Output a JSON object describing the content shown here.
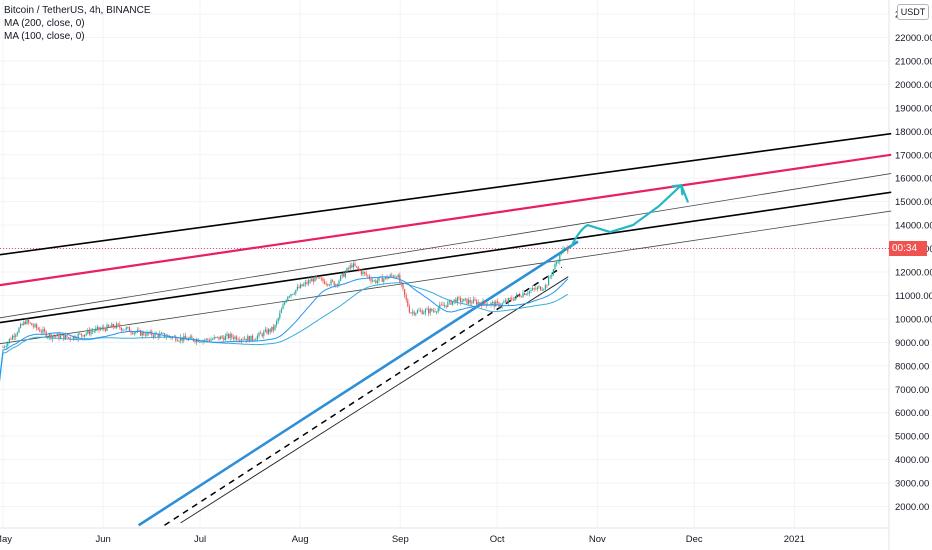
{
  "legend": {
    "symbol": "Bitcoin / TetherUS, 4h, BINANCE",
    "ma1": "MA (200, close, 0)",
    "ma2": "MA (100, close, 0)"
  },
  "currency": "USDT",
  "last_price_label": "00:34",
  "colors": {
    "up": "#26a69a",
    "down": "#ef5350",
    "ma1": "#3aaed8",
    "ma2": "#2196f3",
    "trend_blue": "#2e8fd9",
    "red_line": "#e91e63",
    "projection": "#24b8c4",
    "black": "#000000",
    "grid": "#f0f3fa"
  },
  "chart_data": {
    "type": "candlestick",
    "y_axis": {
      "ticks": [
        "2000.00",
        "3000.00",
        "4000.00",
        "5000.00",
        "6000.00",
        "7000.00",
        "8000.00",
        "9000.00",
        "10000.00",
        "11000.00",
        "12000.00",
        "13000.00",
        "14000.00",
        "15000.00",
        "16000.00",
        "17000.00",
        "18000.00",
        "19000.00",
        "20000.00",
        "21000.00",
        "22000.00",
        "2"
      ]
    },
    "x_axis": {
      "ticks": [
        "May",
        "Jun",
        "Jul",
        "Aug",
        "Sep",
        "Oct",
        "Nov",
        "Dec",
        "2021"
      ]
    },
    "series_points": [
      [
        "2020-05-01",
        8800
      ],
      [
        "2020-05-08",
        9900
      ],
      [
        "2020-05-15",
        9300
      ],
      [
        "2020-05-22",
        9200
      ],
      [
        "2020-05-29",
        9500
      ],
      [
        "2020-06-05",
        9700
      ],
      [
        "2020-06-12",
        9400
      ],
      [
        "2020-06-19",
        9300
      ],
      [
        "2020-06-26",
        9150
      ],
      [
        "2020-07-03",
        9100
      ],
      [
        "2020-07-10",
        9250
      ],
      [
        "2020-07-17",
        9150
      ],
      [
        "2020-07-24",
        9600
      ],
      [
        "2020-07-28",
        11000
      ],
      [
        "2020-08-05",
        11700
      ],
      [
        "2020-08-12",
        11500
      ],
      [
        "2020-08-17",
        12300
      ],
      [
        "2020-08-24",
        11600
      ],
      [
        "2020-08-31",
        11900
      ],
      [
        "2020-09-04",
        10300
      ],
      [
        "2020-09-11",
        10350
      ],
      [
        "2020-09-18",
        10800
      ],
      [
        "2020-09-25",
        10700
      ],
      [
        "2020-10-02",
        10600
      ],
      [
        "2020-10-09",
        11100
      ],
      [
        "2020-10-16",
        11400
      ],
      [
        "2020-10-21",
        12900
      ],
      [
        "2020-10-23",
        13000
      ]
    ],
    "projection": [
      [
        "2020-10-24",
        13100
      ],
      [
        "2020-10-29",
        14000
      ],
      [
        "2020-11-05",
        13700
      ],
      [
        "2020-11-12",
        14000
      ],
      [
        "2020-11-20",
        14800
      ],
      [
        "2020-11-27",
        15700
      ],
      [
        "2020-11-29",
        15000
      ]
    ],
    "trendlines": [
      {
        "name": "channel-top",
        "from": [
          "2020-04-28",
          12700
        ],
        "to": [
          "2021-01-31",
          17900
        ]
      },
      {
        "name": "red-line",
        "from": [
          "2020-04-28",
          11400
        ],
        "to": [
          "2021-01-31",
          17000
        ]
      },
      {
        "name": "upper-thin",
        "from": [
          "2020-04-28",
          10000
        ],
        "to": [
          "2021-01-31",
          16200
        ]
      },
      {
        "name": "channel-mid",
        "from": [
          "2020-04-28",
          9800
        ],
        "to": [
          "2021-01-31",
          15400
        ]
      },
      {
        "name": "lower-thin",
        "from": [
          "2020-04-28",
          8900
        ],
        "to": [
          "2021-01-31",
          14600
        ]
      },
      {
        "name": "blue-trend",
        "from": [
          "2020-06-12",
          1200
        ],
        "to": [
          "2020-10-26",
          13300
        ]
      },
      {
        "name": "dashed-support",
        "from": [
          "2020-06-20",
          1200
        ],
        "to": [
          "2020-10-21",
          12200
        ]
      },
      {
        "name": "thin-support",
        "from": [
          "2020-06-25",
          1300
        ],
        "to": [
          "2020-10-23",
          11800
        ]
      }
    ]
  }
}
